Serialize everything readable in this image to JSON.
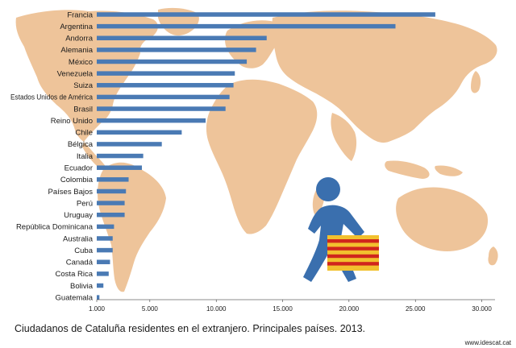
{
  "chart_data": {
    "type": "bar",
    "orientation": "horizontal",
    "categories": [
      "Francia",
      "Argentina",
      "Andorra",
      "Alemania",
      "México",
      "Venezuela",
      "Suiza",
      "Estados Unidos de América",
      "Brasil",
      "Reino Unido",
      "Chile",
      "Bélgica",
      "Italia",
      "Ecuador",
      "Colombia",
      "Países Bajos",
      "Perú",
      "Uruguay",
      "República Dominicana",
      "Australia",
      "Cuba",
      "Canadá",
      "Costa Rica",
      "Bolivia",
      "Guatemala"
    ],
    "values": [
      26500,
      23500,
      13800,
      13000,
      12300,
      11400,
      11300,
      11000,
      10700,
      9200,
      7400,
      5900,
      4500,
      4400,
      3400,
      3200,
      3100,
      3100,
      2300,
      2200,
      2200,
      2000,
      1900,
      1500,
      1200
    ],
    "xlim": [
      1000,
      31000
    ],
    "ticks": [
      "1.000",
      "5.000",
      "10.000",
      "15.000",
      "20.000",
      "25.000",
      "30.000"
    ],
    "tick_values": [
      1000,
      5000,
      10000,
      15000,
      20000,
      25000,
      30000
    ],
    "bar_color": "#4a7ab4",
    "background": "world map",
    "map_color": "#eec49a",
    "grid": false,
    "legend": "none"
  },
  "caption": "Ciudadanos de Cataluña residentes en el extranjero. Principales países. 2013.",
  "source": "www.idescat.cat",
  "decoration": {
    "icon": "walking-person-with-catalan-flag-suitcase-icon",
    "person_color": "#3a6fae",
    "flag_yellow": "#f2c12e",
    "flag_red": "#d0261d"
  }
}
